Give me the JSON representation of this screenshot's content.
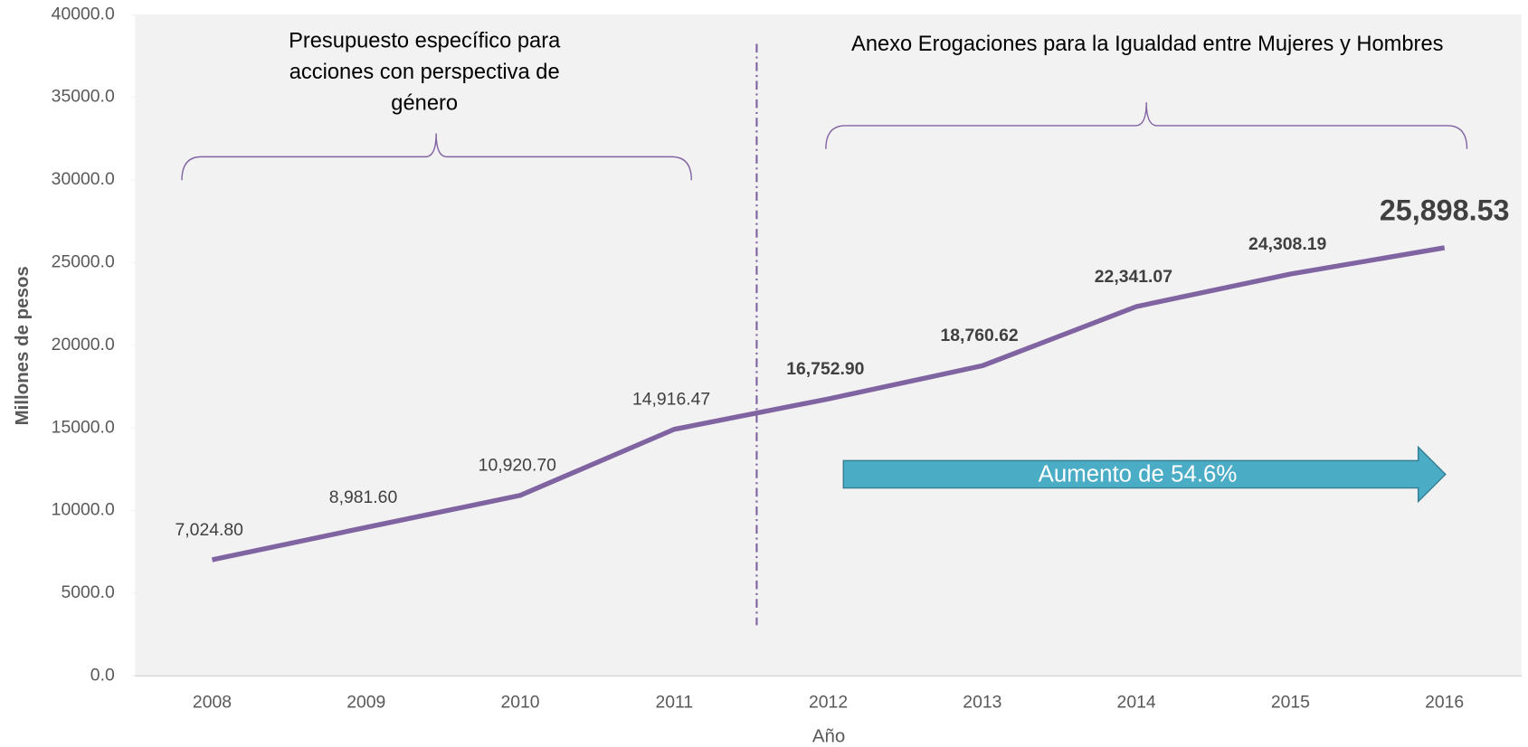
{
  "chart_data": {
    "type": "line",
    "x_label": "Año",
    "y_label": "Millones de pesos",
    "categories": [
      "2008",
      "2009",
      "2010",
      "2011",
      "2012",
      "2013",
      "2014",
      "2015",
      "2016"
    ],
    "values": [
      7024.8,
      8981.6,
      10920.7,
      14916.47,
      16752.9,
      18760.62,
      22341.07,
      24308.19,
      25898.53
    ],
    "value_labels": [
      "7,024.80",
      "8,981.60",
      "10,920.70",
      "14,916.47",
      "16,752.90",
      "18,760.62",
      "22,341.07",
      "24,308.19",
      "25,898.53"
    ],
    "color": "#8064a2",
    "ylim": [
      0,
      40000
    ],
    "yticks": [
      {
        "value": 0,
        "label": "0.0"
      },
      {
        "value": 5000,
        "label": "5000.0"
      },
      {
        "value": 10000,
        "label": "10000.0"
      },
      {
        "value": 15000,
        "label": "15000.0"
      },
      {
        "value": 20000,
        "label": "20000.0"
      },
      {
        "value": 25000,
        "label": "25000.0"
      },
      {
        "value": 30000,
        "label": "30000.0"
      },
      {
        "value": 35000,
        "label": "35000.0"
      },
      {
        "value": 40000,
        "label": "40000.0"
      }
    ],
    "annotations": [
      "Presupuesto específico para",
      "acciones con perspectiva de",
      "género",
      "Anexo Erogaciones para la Igualdad entre Mujeres y Hombres",
      "Aumento de 54.6%"
    ]
  }
}
